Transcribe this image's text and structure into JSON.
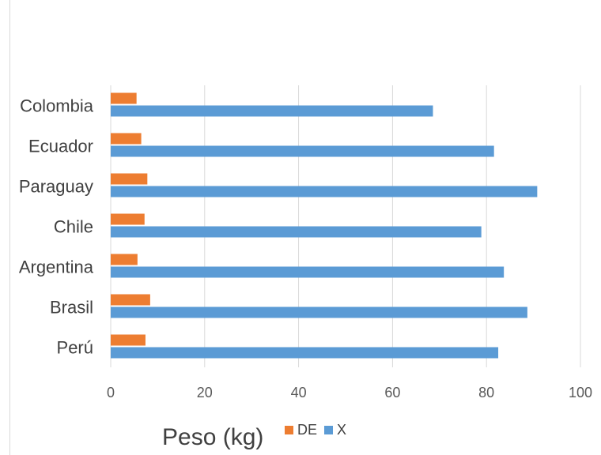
{
  "chart_data": {
    "type": "bar",
    "orientation": "horizontal",
    "categories": [
      "Colombia",
      "Ecuador",
      "Paraguay",
      "Chile",
      "Argentina",
      "Brasil",
      "Perú"
    ],
    "series": [
      {
        "name": "DE",
        "color": "#ed7d31",
        "values": [
          5.5,
          6.5,
          7.8,
          7.2,
          5.7,
          8.4,
          7.4
        ]
      },
      {
        "name": "X",
        "color": "#5b9bd5",
        "values": [
          68.6,
          81.6,
          90.8,
          78.9,
          83.7,
          88.7,
          82.5
        ]
      }
    ],
    "xlim": [
      0,
      100
    ],
    "xticks": [
      0,
      20,
      40,
      60,
      80,
      100
    ],
    "xlabel": "Peso (kg)",
    "ylabel": "",
    "title": "",
    "grid": "vertical",
    "legend": "bottom"
  }
}
